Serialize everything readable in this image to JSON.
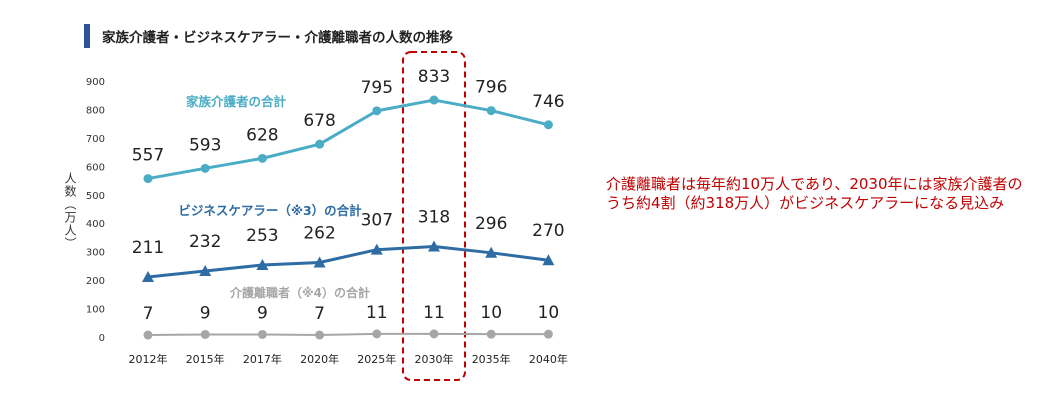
{
  "chart_data": {
    "type": "line",
    "title": "家族介護者・ビジネスケアラー・介護離職者の人数の推移",
    "ylabel": "人数（万人）",
    "ylim": [
      0,
      900
    ],
    "yticks": [
      0,
      100,
      200,
      300,
      400,
      500,
      600,
      700,
      800,
      900
    ],
    "categories": [
      "2012年",
      "2015年",
      "2017年",
      "2020年",
      "2025年",
      "2030年",
      "2035年",
      "2040年"
    ],
    "series": [
      {
        "name": "家族介護者の合計",
        "values": [
          557,
          593,
          628,
          678,
          795,
          833,
          796,
          746
        ],
        "color": "#4bacc6",
        "marker": "circle"
      },
      {
        "name": "ビジネスケアラー（※3）の合計",
        "values": [
          211,
          232,
          253,
          262,
          307,
          318,
          296,
          270
        ],
        "color": "#2e6ca4",
        "marker": "triangle"
      },
      {
        "name": "介護離職者（※4）の合計",
        "values": [
          7,
          9,
          9,
          7,
          11,
          11,
          10,
          10
        ],
        "color": "#a6a6a6",
        "marker": "circle"
      }
    ],
    "highlight": {
      "category": "2030年",
      "style": "dashed-box",
      "color": "#c00000"
    },
    "grid": false
  },
  "annotation": "介護離職者は毎年約10万人であり、2030年には家族介護者のうち約4割（約318万人）がビジネスケアラーになる見込み"
}
